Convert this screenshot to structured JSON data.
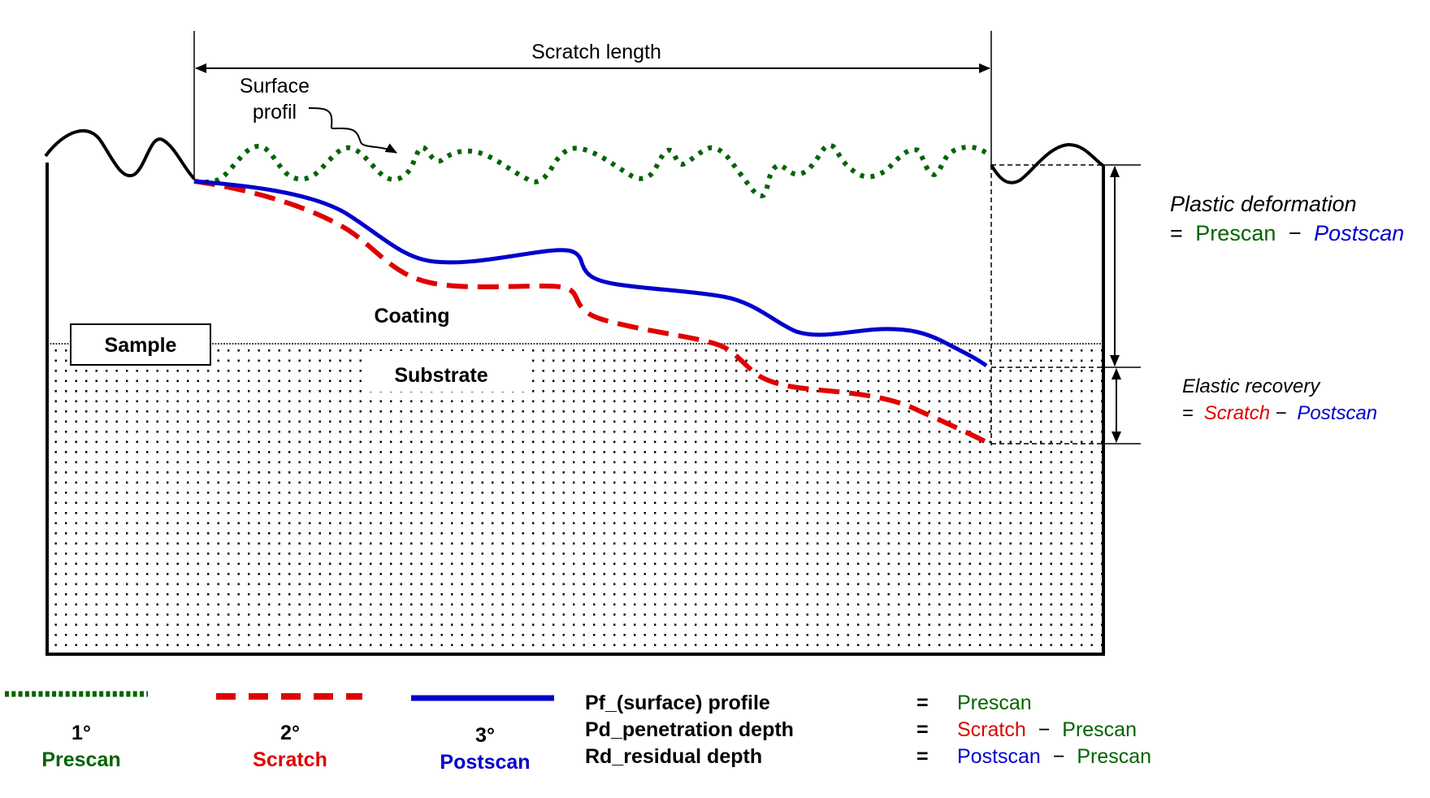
{
  "colors": {
    "prescan": "#006400",
    "scratch": "#e00000",
    "postscan": "#0000cc",
    "outline": "#000000"
  },
  "labels": {
    "scratch_length": "Scratch length",
    "surface_profil_line1": "Surface",
    "surface_profil_line2": "profil",
    "coating": "Coating",
    "sample": "Sample",
    "substrate": "Substrate"
  },
  "plastic": {
    "title": "Plastic deformation",
    "eq": "=",
    "term1": "Prescan",
    "minus": "−",
    "term2": "Postscan"
  },
  "elastic": {
    "title": "Elastic recovery",
    "eq": "=",
    "term1": "Scratch",
    "minus": "−",
    "term2": "Postscan"
  },
  "legend": [
    {
      "order": "1°",
      "name": "Prescan",
      "style": "dotted"
    },
    {
      "order": "2°",
      "name": "Scratch",
      "style": "dashed"
    },
    {
      "order": "3°",
      "name": "Postscan",
      "style": "solid"
    }
  ],
  "definitions": [
    {
      "term": "Pf_(surface) profile",
      "eq": "=",
      "parts": [
        {
          "text": "Prescan",
          "series": "prescan"
        }
      ]
    },
    {
      "term": "Pd_penetration depth",
      "eq": "=",
      "parts": [
        {
          "text": "Scratch",
          "series": "scratch"
        },
        {
          "text": "−",
          "series": "outline"
        },
        {
          "text": "Prescan",
          "series": "prescan"
        }
      ]
    },
    {
      "term": "Rd_residual depth",
      "eq": "=",
      "parts": [
        {
          "text": "Postscan",
          "series": "postscan"
        },
        {
          "text": "−",
          "series": "outline"
        },
        {
          "text": "Prescan",
          "series": "prescan"
        }
      ]
    }
  ]
}
